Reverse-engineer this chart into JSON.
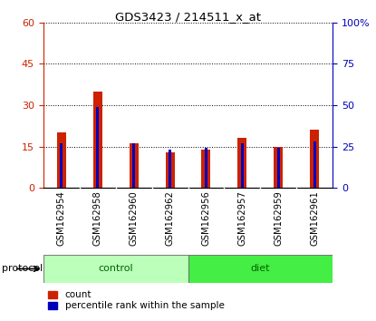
{
  "title": "GDS3423 / 214511_x_at",
  "samples": [
    "GSM162954",
    "GSM162958",
    "GSM162960",
    "GSM162962",
    "GSM162956",
    "GSM162957",
    "GSM162959",
    "GSM162961"
  ],
  "count_values": [
    20,
    35,
    16,
    13,
    14,
    18,
    15,
    21
  ],
  "percentile_values": [
    27,
    49,
    27,
    23,
    24,
    27,
    24,
    28
  ],
  "groups": [
    {
      "label": "control",
      "indices": [
        0,
        1,
        2,
        3
      ],
      "color": "#bbffbb"
    },
    {
      "label": "diet",
      "indices": [
        4,
        5,
        6,
        7
      ],
      "color": "#44ee44"
    }
  ],
  "bar_color_red": "#cc2200",
  "bar_color_blue": "#0000bb",
  "left_yticks": [
    0,
    15,
    30,
    45,
    60
  ],
  "right_yticks": [
    0,
    25,
    50,
    75,
    100
  ],
  "left_ylim": [
    0,
    60
  ],
  "right_ylim": [
    0,
    100
  ],
  "tick_color_left": "#cc2200",
  "tick_color_right": "#0000bb",
  "protocol_label": "protocol",
  "legend_count": "count",
  "legend_percentile": "percentile rank within the sample",
  "red_bar_width": 0.25,
  "blue_bar_width": 0.08
}
